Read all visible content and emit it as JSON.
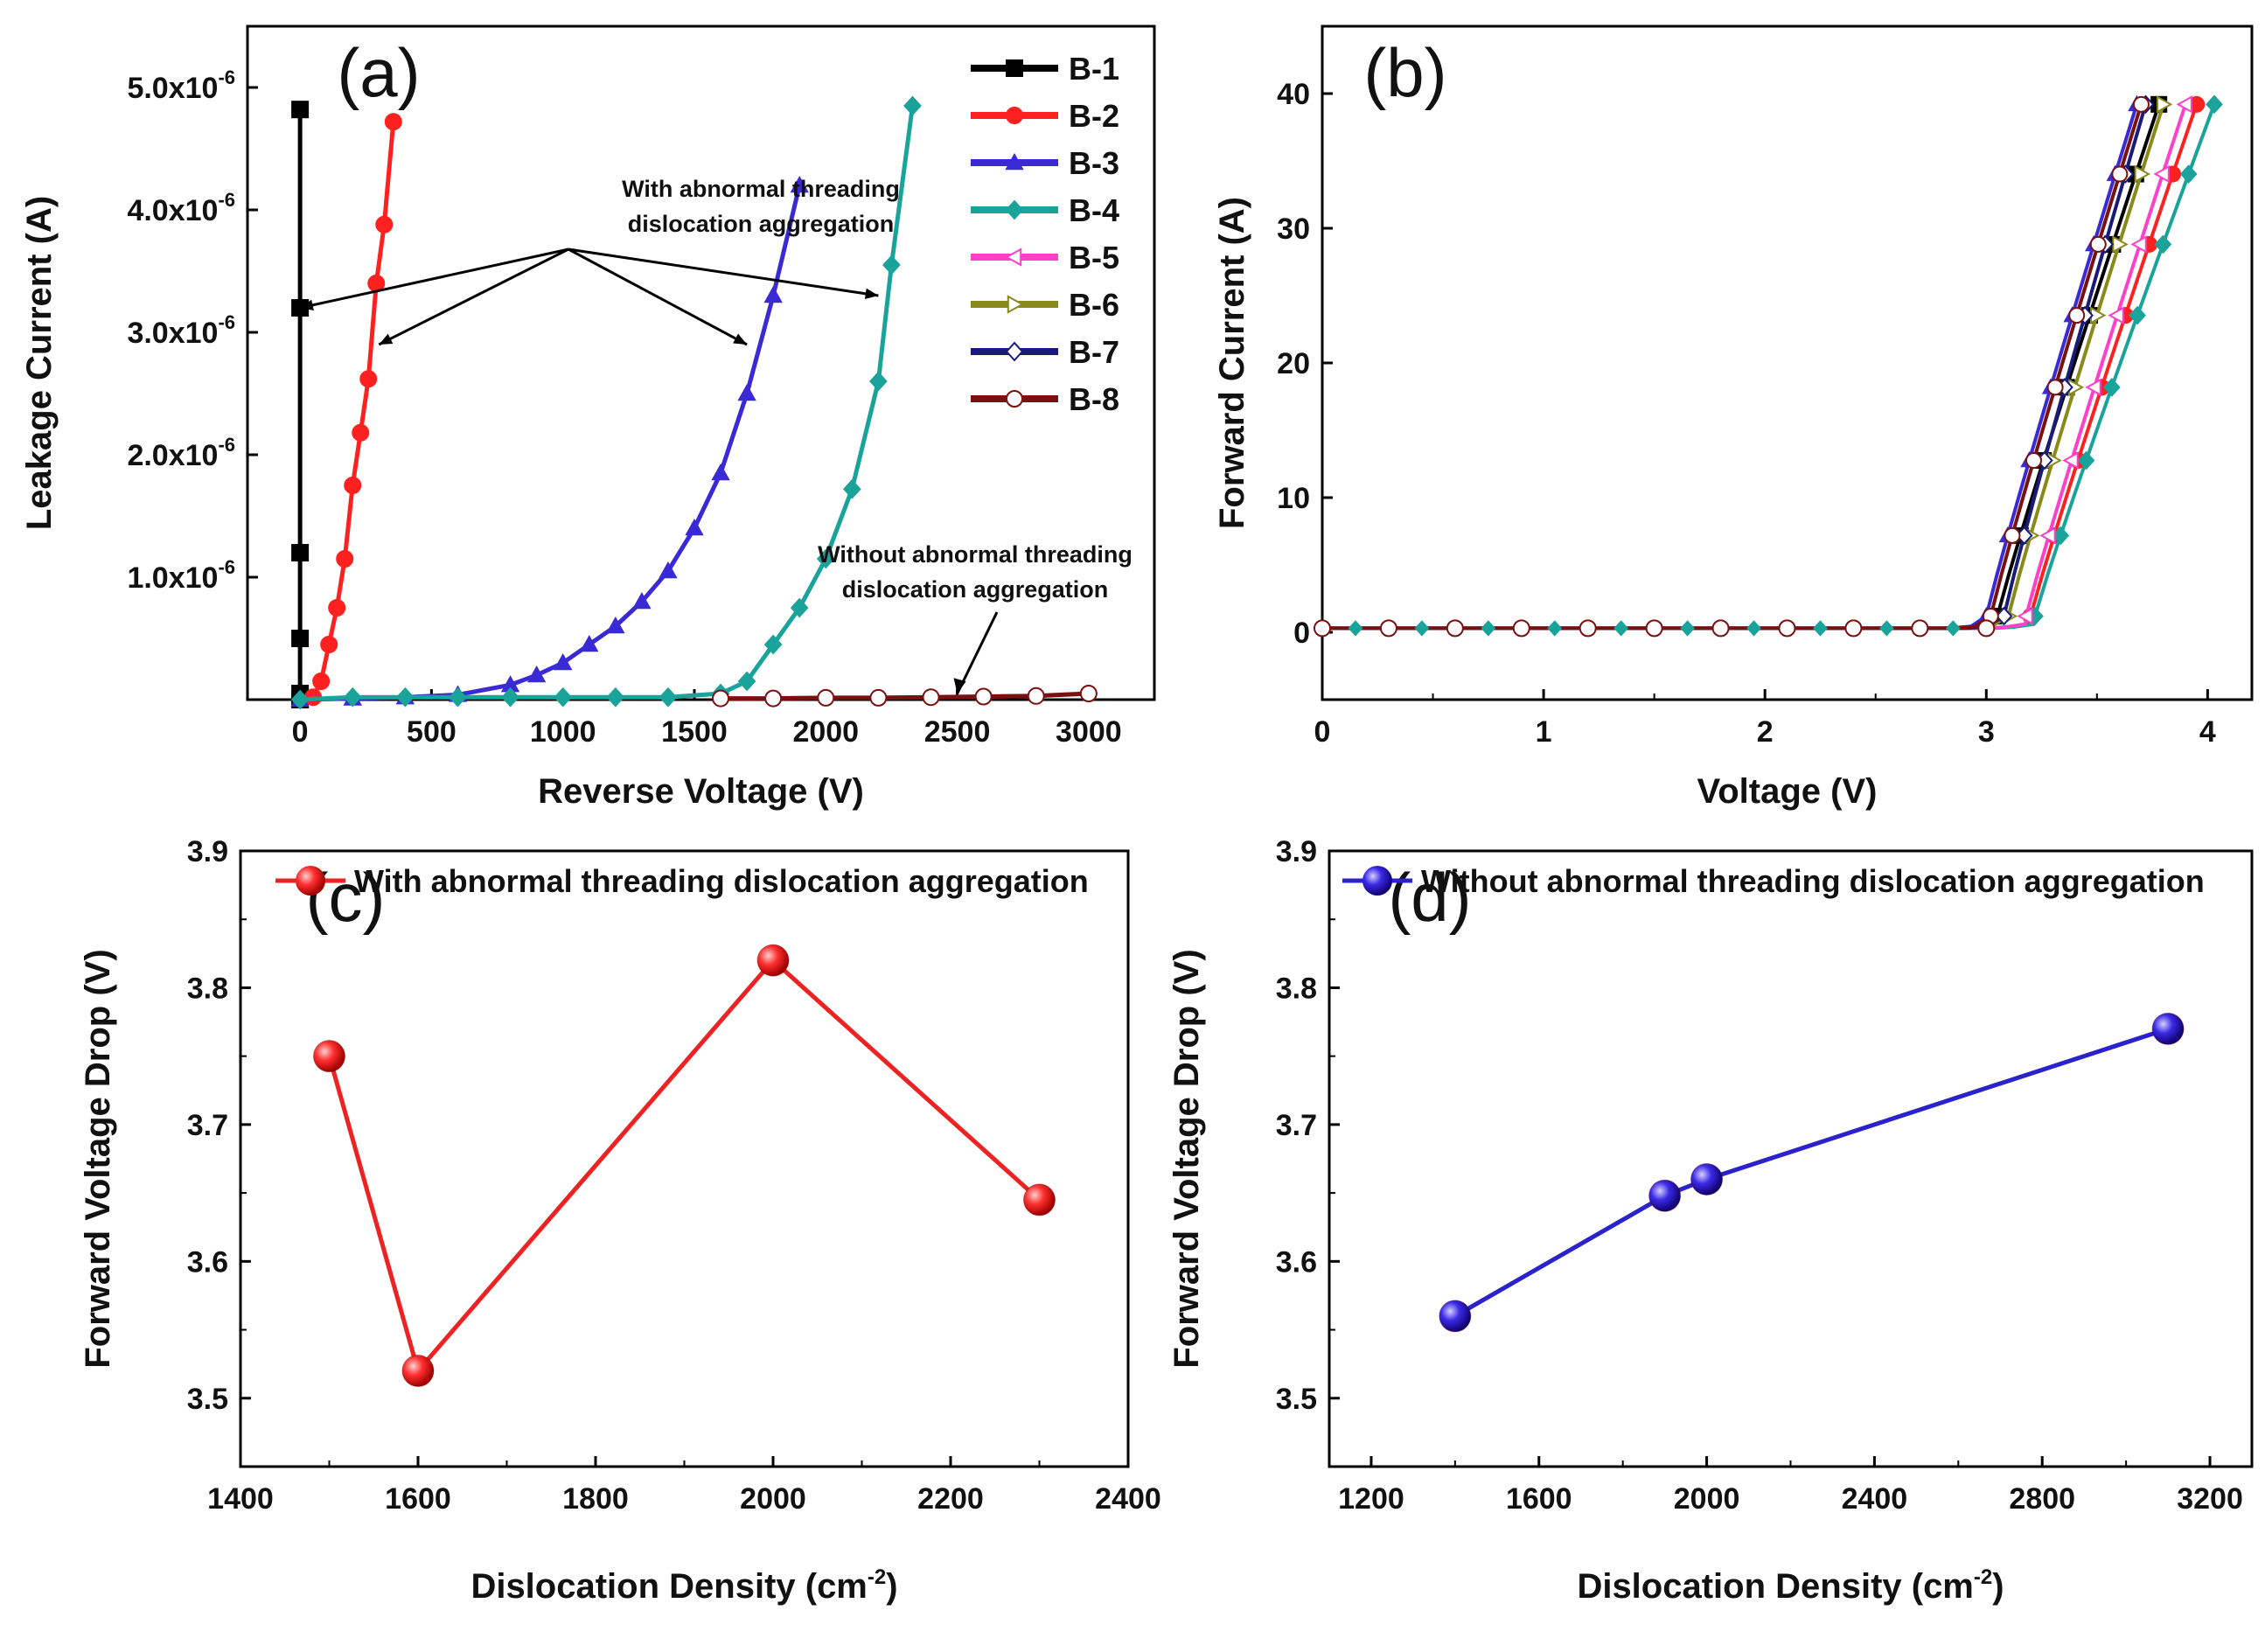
{
  "chart_data": [
    {
      "panel_letter": "(a)",
      "type": "line",
      "xlabel": "Reverse Voltage (V)",
      "ylabel": "Leakage Current (A)",
      "xlim": [
        -200,
        3250
      ],
      "ylim": [
        0,
        5.5e-06
      ],
      "x_ticks": [
        0,
        500,
        1000,
        1500,
        2000,
        2500,
        3000
      ],
      "x_tick_labels": [
        "0",
        "500",
        "1000",
        "1500",
        "2000",
        "2500",
        "3000"
      ],
      "y_ticks": [
        1e-06,
        2e-06,
        3e-06,
        4e-06,
        5e-06
      ],
      "y_tick_labels": [
        {
          "base": "1.0x10",
          "exp": "-6"
        },
        {
          "base": "2.0x10",
          "exp": "-6"
        },
        {
          "base": "3.0x10",
          "exp": "-6"
        },
        {
          "base": "4.0x10",
          "exp": "-6"
        },
        {
          "base": "5.0x10",
          "exp": "-6"
        }
      ],
      "legend": [
        "B-1",
        "B-2",
        "B-3",
        "B-4",
        "B-5",
        "B-6",
        "B-7",
        "B-8"
      ],
      "series": [
        {
          "name": "B-1",
          "color": "#000000",
          "marker": "square",
          "x": [
            0,
            0,
            0,
            0,
            0,
            0
          ],
          "y": [
            0,
            5e-08,
            5e-07,
            1.2e-06,
            3.2e-06,
            4.82e-06
          ]
        },
        {
          "name": "B-2",
          "color": "#ff2020",
          "marker": "circle",
          "x": [
            50,
            80,
            110,
            140,
            170,
            200,
            230,
            260,
            290,
            320,
            355
          ],
          "y": [
            2e-08,
            1.5e-07,
            4.5e-07,
            7.5e-07,
            1.15e-06,
            1.75e-06,
            2.18e-06,
            2.62e-06,
            3.4e-06,
            3.88e-06,
            4.72e-06
          ]
        },
        {
          "name": "B-3",
          "color": "#3a2ad6",
          "marker": "triangle",
          "x": [
            0,
            200,
            400,
            600,
            800,
            900,
            1000,
            1100,
            1200,
            1300,
            1400,
            1500,
            1600,
            1700,
            1800,
            1900
          ],
          "y": [
            0,
            1e-08,
            2e-08,
            4e-08,
            1.2e-07,
            2e-07,
            3e-07,
            4.5e-07,
            6e-07,
            8e-07,
            1.05e-06,
            1.4e-06,
            1.85e-06,
            2.5e-06,
            3.3e-06,
            4.2e-06
          ]
        },
        {
          "name": "B-4",
          "color": "#1aa39a",
          "marker": "diamond",
          "x": [
            0,
            200,
            400,
            600,
            800,
            1000,
            1200,
            1400,
            1600,
            1700,
            1800,
            1900,
            2000,
            2100,
            2200,
            2250,
            2330
          ],
          "y": [
            0,
            2e-08,
            2e-08,
            2e-08,
            2e-08,
            2e-08,
            2e-08,
            2e-08,
            5e-08,
            1.5e-07,
            4.5e-07,
            7.5e-07,
            1.15e-06,
            1.72e-06,
            2.6e-06,
            3.55e-06,
            4.85e-06
          ]
        },
        {
          "name": "B-5",
          "color": "#ff40c8",
          "marker": "left-triangle",
          "x": [],
          "y": []
        },
        {
          "name": "B-6",
          "color": "#8a8a1a",
          "marker": "right-triangle",
          "x": [],
          "y": []
        },
        {
          "name": "B-7",
          "color": "#1a1a7a",
          "marker": "diamond-open",
          "x": [],
          "y": []
        },
        {
          "name": "B-8",
          "color": "#7a1010",
          "marker": "circle-open",
          "x": [
            1600,
            1800,
            2000,
            2200,
            2400,
            2600,
            2800,
            3000
          ],
          "y": [
            1e-08,
            1e-08,
            1.5e-08,
            1.5e-08,
            2e-08,
            2.5e-08,
            3e-08,
            5e-08
          ]
        }
      ],
      "annotations": [
        {
          "lines": [
            "With abnormal threading",
            "dislocation aggregation"
          ],
          "kind": "arrows",
          "targets": [
            [
              0,
              3.2e-06
            ],
            [
              300,
              2.9e-06
            ],
            [
              1700,
              2.9e-06
            ],
            [
              2200,
              3.3e-06
            ]
          ]
        },
        {
          "lines": [
            "Without abnormal threading",
            "dislocation aggregation"
          ],
          "kind": "arrow",
          "targets": [
            [
              2500,
              2e-08
            ]
          ]
        }
      ]
    },
    {
      "panel_letter": "(b)",
      "type": "line",
      "xlabel": "Voltage (V)",
      "ylabel": "Forward Current (A)",
      "xlim": [
        0,
        4.2
      ],
      "ylim": [
        -5,
        45
      ],
      "x_ticks": [
        0,
        1,
        2,
        3,
        4
      ],
      "x_tick_labels": [
        "0",
        "1",
        "2",
        "3",
        "4"
      ],
      "y_ticks": [
        0,
        10,
        20,
        30,
        40
      ],
      "y_tick_labels": [
        "0",
        "10",
        "20",
        "30",
        "40"
      ],
      "curves": [
        {
          "name": "B-1",
          "color": "#000000",
          "onset": 3.05,
          "end": 3.78,
          "marker": "square"
        },
        {
          "name": "B-2",
          "color": "#ff2020",
          "onset": 3.2,
          "end": 3.95,
          "marker": "circle"
        },
        {
          "name": "B-3",
          "color": "#3a2ad6",
          "onset": 3.0,
          "end": 3.68,
          "marker": "triangle"
        },
        {
          "name": "B-4",
          "color": "#1aa39a",
          "onset": 3.22,
          "end": 4.03,
          "marker": "diamond"
        },
        {
          "name": "B-5",
          "color": "#ff40c8",
          "onset": 3.18,
          "end": 3.9,
          "marker": "left-triangle"
        },
        {
          "name": "B-6",
          "color": "#8a8a1a",
          "onset": 3.1,
          "end": 3.8,
          "marker": "right-triangle"
        },
        {
          "name": "B-7",
          "color": "#1a1a7a",
          "onset": 3.08,
          "end": 3.72,
          "marker": "diamond-open"
        },
        {
          "name": "B-8",
          "color": "#7a1010",
          "onset": 3.02,
          "end": 3.7,
          "marker": "circle-open"
        }
      ]
    },
    {
      "panel_letter": "(c)",
      "type": "line",
      "xlabel": "Dislocation Density (cm",
      "xlabel_sup": "-2",
      "xlabel_close": ")",
      "ylabel": "Forward Voltage Drop (V)",
      "xlim": [
        1400,
        2400
      ],
      "ylim": [
        3.45,
        3.9
      ],
      "x_ticks": [
        1400,
        1600,
        1800,
        2000,
        2200,
        2400
      ],
      "x_tick_labels": [
        "1400",
        "1600",
        "1800",
        "2000",
        "2200",
        "2400"
      ],
      "y_ticks": [
        3.5,
        3.6,
        3.7,
        3.8,
        3.9
      ],
      "y_tick_labels": [
        "3.5",
        "3.6",
        "3.7",
        "3.8",
        "3.9"
      ],
      "legend": [
        "With abnormal threading dislocation aggregation"
      ],
      "series": [
        {
          "name": "With abnormal threading dislocation aggregation",
          "color": "#ee2222",
          "x": [
            1500,
            1600,
            2000,
            2300
          ],
          "y": [
            3.75,
            3.52,
            3.82,
            3.645
          ]
        }
      ]
    },
    {
      "panel_letter": "(d)",
      "type": "line",
      "xlabel": "Dislocation Density (cm",
      "xlabel_sup": "-2",
      "xlabel_close": ")",
      "ylabel": "Forward Voltage Drop (V)",
      "xlim": [
        1100,
        3300
      ],
      "ylim": [
        3.45,
        3.9
      ],
      "x_ticks": [
        1200,
        1600,
        2000,
        2400,
        2800,
        3200
      ],
      "x_tick_labels": [
        "1200",
        "1600",
        "2000",
        "2400",
        "2800",
        "3200"
      ],
      "y_ticks": [
        3.5,
        3.6,
        3.7,
        3.8,
        3.9
      ],
      "y_tick_labels": [
        "3.5",
        "3.6",
        "3.7",
        "3.8",
        "3.9"
      ],
      "legend": [
        "Without abnormal threading dislocation aggregation"
      ],
      "series": [
        {
          "name": "Without abnormal threading dislocation aggregation",
          "color": "#2a22cc",
          "x": [
            1400,
            1900,
            2000,
            3100
          ],
          "y": [
            3.56,
            3.648,
            3.66,
            3.77
          ]
        }
      ]
    }
  ]
}
